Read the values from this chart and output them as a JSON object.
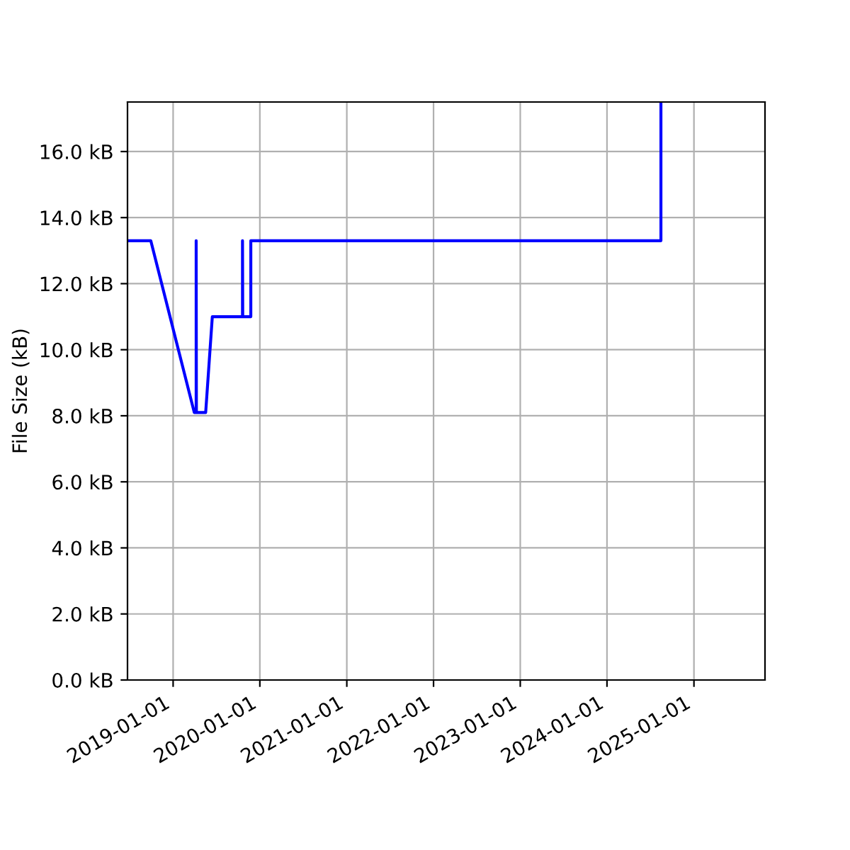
{
  "chart_data": {
    "type": "line",
    "ylabel": "File Size (kB)",
    "x": [
      "2018-06-23",
      "2018-09-29",
      "2019-03-31",
      "2019-04-08",
      "2019-04-08",
      "2019-04-09",
      "2019-05-18",
      "2019-06-15",
      "2019-10-20",
      "2019-10-20",
      "2019-10-21",
      "2019-11-24",
      "2019-11-24",
      "2024-08-15",
      "2024-08-15"
    ],
    "series": [
      {
        "color": "#0000ff",
        "values": [
          13.3,
          13.3,
          8.1,
          8.1,
          13.3,
          8.1,
          8.1,
          11.0,
          11.0,
          13.3,
          11.0,
          11.0,
          13.3,
          13.3,
          17.5
        ]
      }
    ],
    "xlim": [
      "2018-06-23",
      "2025-10-27"
    ],
    "xticks": [
      {
        "value": "2019-01-01",
        "label": "2019-01-01"
      },
      {
        "value": "2020-01-01",
        "label": "2020-01-01"
      },
      {
        "value": "2021-01-01",
        "label": "2021-01-01"
      },
      {
        "value": "2022-01-01",
        "label": "2022-01-01"
      },
      {
        "value": "2023-01-01",
        "label": "2023-01-01"
      },
      {
        "value": "2024-01-01",
        "label": "2024-01-01"
      },
      {
        "value": "2025-01-01",
        "label": "2025-01-01"
      }
    ],
    "ylim": [
      0,
      17.5
    ],
    "yticks": [
      {
        "value": 0,
        "label": "0.0 kB"
      },
      {
        "value": 2,
        "label": "2.0 kB"
      },
      {
        "value": 4,
        "label": "4.0 kB"
      },
      {
        "value": 6,
        "label": "6.0 kB"
      },
      {
        "value": 8,
        "label": "8.0 kB"
      },
      {
        "value": 10,
        "label": "10.0 kB"
      },
      {
        "value": 12,
        "label": "12.0 kB"
      },
      {
        "value": 14,
        "label": "14.0 kB"
      },
      {
        "value": 16,
        "label": "16.0 kB"
      }
    ],
    "grid": true,
    "legend": false,
    "marker": "none",
    "line_style": "solid"
  }
}
